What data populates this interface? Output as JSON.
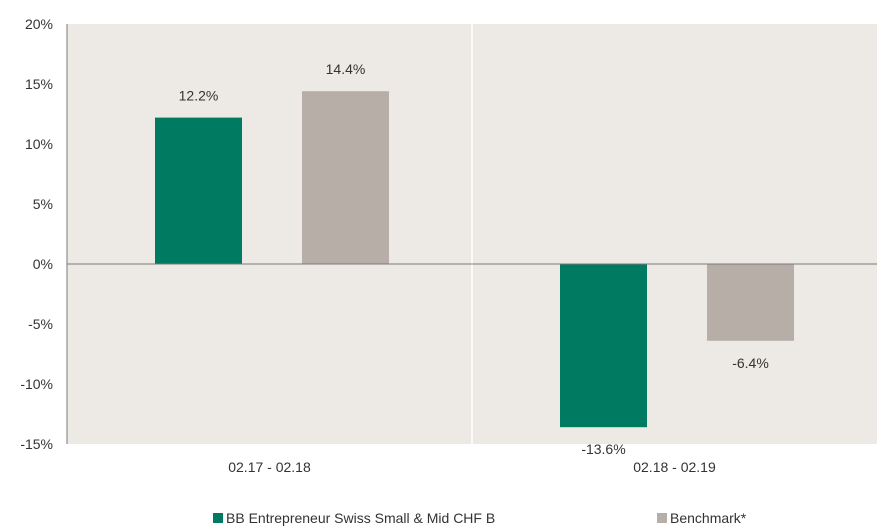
{
  "chart_data": {
    "type": "bar",
    "categories": [
      "02.17 - 02.18",
      "02.18 - 02.19"
    ],
    "series": [
      {
        "name": "BB Entrepreneur Swiss Small & Mid CHF B",
        "values": [
          12.2,
          -13.6
        ],
        "labels": [
          "12.2%",
          "-13.6%"
        ],
        "color": "#007A61"
      },
      {
        "name": "Benchmark*",
        "values": [
          14.4,
          -6.4
        ],
        "labels": [
          "14.4%",
          "-6.4%"
        ],
        "color": "#B7AEA8"
      }
    ],
    "ylim": [
      -15,
      20
    ],
    "yticks": [
      20,
      15,
      10,
      5,
      0,
      -5,
      -10,
      -15
    ],
    "ytick_labels": [
      "20%",
      "15%",
      "10%",
      "5%",
      "0%",
      "-5%",
      "-10%",
      "-15%"
    ],
    "title": "",
    "xlabel": "",
    "ylabel": "",
    "legend_position": "bottom",
    "plot_background": "#EDEAE6",
    "grid": false
  }
}
